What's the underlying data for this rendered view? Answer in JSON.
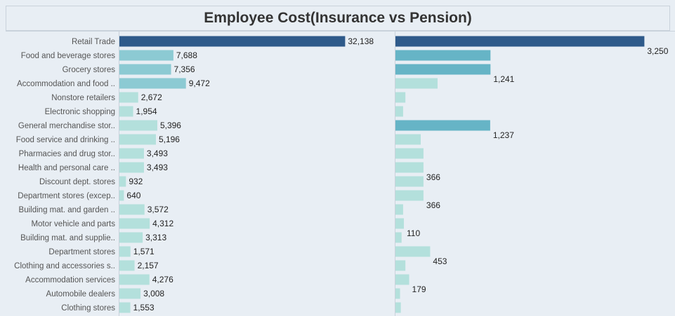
{
  "title": "Employee Cost(Insurance vs Pension)",
  "chart_data": {
    "type": "bar",
    "orientation": "horizontal",
    "title": "Employee Cost(Insurance vs Pension)",
    "categories": [
      "Retail Trade",
      "Food and beverage stores",
      "Grocery stores",
      "Accommodation and food ..",
      "Nonstore retailers",
      "Electronic shopping",
      "General merchandise stor..",
      "Food service and drinking ..",
      "Pharmacies and drug stor..",
      "Health and personal care ..",
      "Discount dept. stores",
      "Department stores (excep..",
      "Building mat. and garden ..",
      "Motor vehicle and parts",
      "Building mat. and supplie..",
      "Department stores",
      "Clothing and accessories s..",
      "Accommodation services",
      "Automobile dealers",
      "Clothing stores"
    ],
    "series": [
      {
        "values": [
          32138,
          7688,
          7356,
          9472,
          2672,
          1954,
          5396,
          5196,
          3493,
          3493,
          932,
          640,
          3572,
          4312,
          3313,
          1571,
          2157,
          4276,
          3008,
          1553
        ]
      },
      {
        "values": [
          3250,
          1241,
          1241,
          550,
          130,
          100,
          1237,
          330,
          366,
          366,
          366,
          366,
          100,
          110,
          80,
          453,
          130,
          179,
          60,
          70
        ]
      }
    ],
    "data_labels": [
      {
        "series": 0,
        "labels": [
          "32,138",
          "7,688",
          "7,356",
          "9,472",
          "2,672",
          "1,954",
          "5,396",
          "5,196",
          "3,493",
          "3,493",
          "932",
          "640",
          "3,572",
          "4,312",
          "3,313",
          "1,571",
          "2,157",
          "4,276",
          "3,008",
          "1,553"
        ]
      },
      {
        "series": 1,
        "shown": [
          {
            "index": 0,
            "label": "3,250"
          },
          {
            "index": 2,
            "label": "1,241"
          },
          {
            "index": 6,
            "label": "1,237"
          },
          {
            "index": 9,
            "label": "366"
          },
          {
            "index": 11,
            "label": "366"
          },
          {
            "index": 13,
            "label": "110"
          },
          {
            "index": 15,
            "label": "453"
          },
          {
            "index": 17,
            "label": "179"
          }
        ]
      }
    ],
    "xlim": [
      [
        0,
        39000
      ],
      [
        0,
        3650
      ]
    ],
    "grid": false,
    "legend": "none",
    "colors": {
      "max": "#2e5a8a",
      "high": "#66b4c6",
      "mid": "#8ccad3",
      "low": "#b3e0dc"
    }
  }
}
